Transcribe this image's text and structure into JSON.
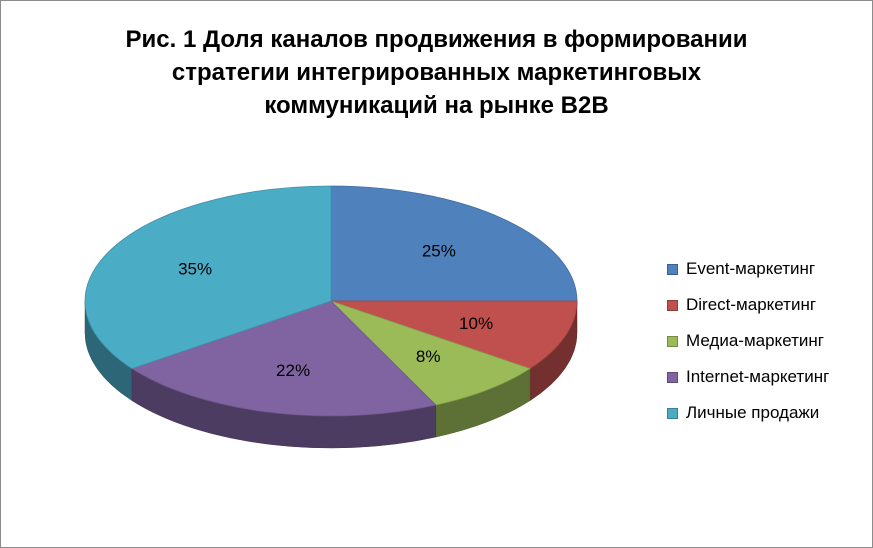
{
  "chart_data": {
    "type": "pie",
    "style": "3d",
    "title_lines": [
      "Рис. 1  Доля каналов продвижения в формировании",
      "стратегии  интегрированных маркетинговых",
      "коммуникаций на рынке В2В"
    ],
    "legend_position": "right",
    "slices": [
      {
        "name": "Event-маркетинг",
        "value": 25,
        "label": "25%",
        "color": "#4F81BD"
      },
      {
        "name": "Direct-маркетинг",
        "value": 10,
        "label": "10%",
        "color": "#C0504D"
      },
      {
        "name": "Медиа-маркетинг",
        "value": 8,
        "label": "8%",
        "color": "#9BBB59"
      },
      {
        "name": "Internet-маркетинг",
        "value": 22,
        "label": "22%",
        "color": "#8064A2"
      },
      {
        "name": "Личные продажи",
        "value": 35,
        "label": "35%",
        "color": "#4BACC6"
      }
    ]
  }
}
